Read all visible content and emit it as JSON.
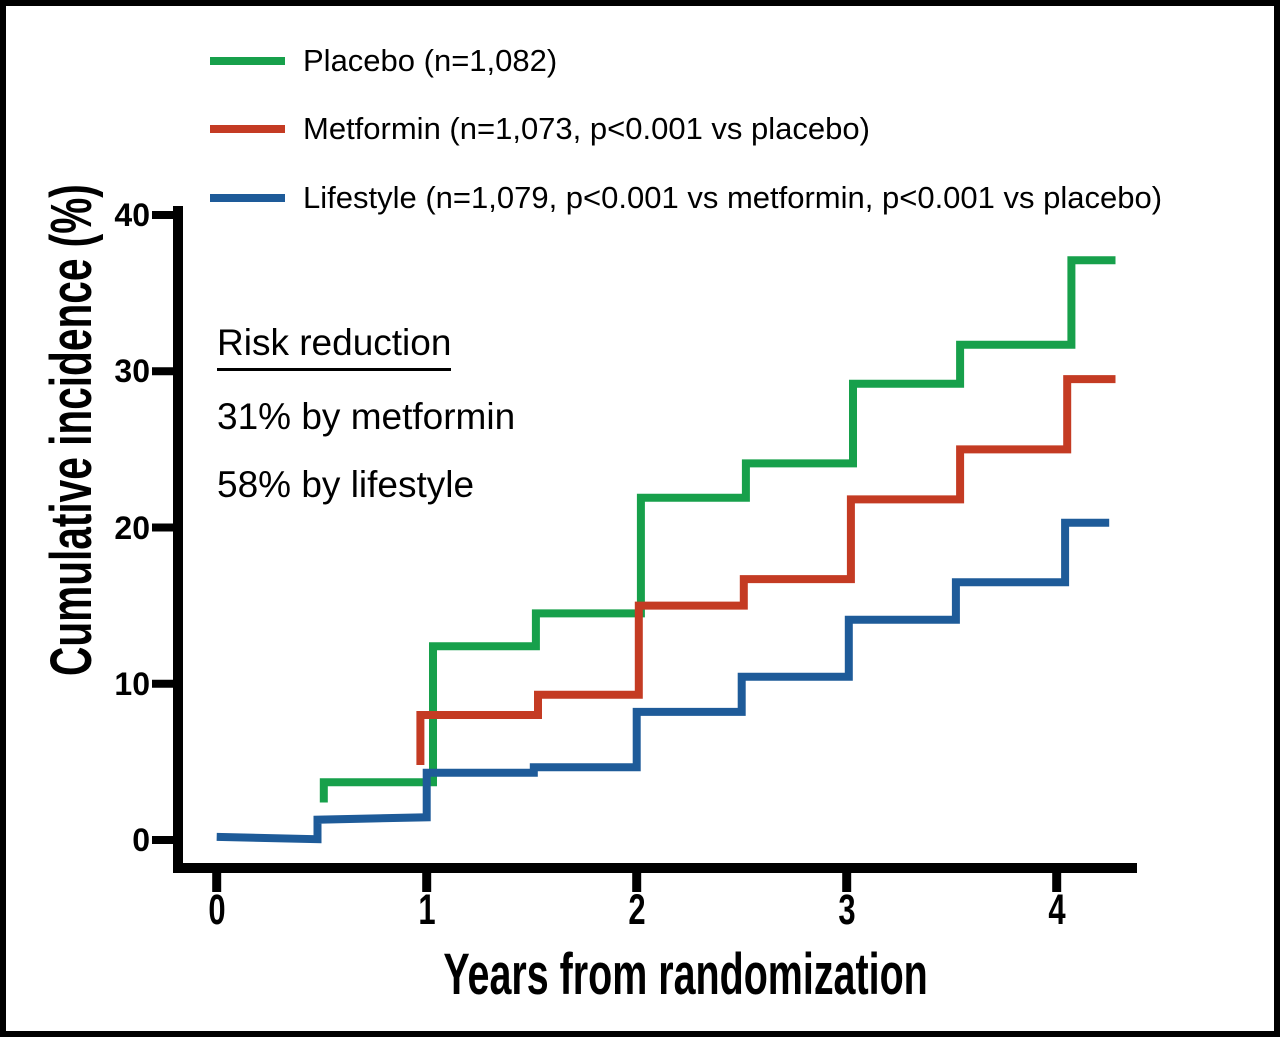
{
  "legend": {
    "items": [
      {
        "label": "Placebo (n=1,082)",
        "series": "Placebo"
      },
      {
        "label": "Metformin (n=1,073, p<0.001 vs placebo)",
        "series": "Metformin"
      },
      {
        "label": "Lifestyle (n=1,079, p<0.001 vs metformin, p<0.001 vs placebo)",
        "series": "Lifestyle"
      }
    ]
  },
  "annotations": {
    "heading": "Risk reduction",
    "line1": "31% by metformin",
    "line2": "58% by lifestyle"
  },
  "chart_data": {
    "type": "line",
    "subtype": "step-cumulative-incidence",
    "title": "",
    "xlabel": "Years from randomization",
    "ylabel": "Cumulative incidence (%)",
    "xlim": [
      0,
      4.4
    ],
    "ylim": [
      0,
      40
    ],
    "x_ticks": [
      0,
      1,
      2,
      3,
      4
    ],
    "y_ticks": [
      0,
      10,
      20,
      30,
      40
    ],
    "grid": false,
    "legend_position": "top-left",
    "axis_color": "#000000",
    "series": [
      {
        "name": "Placebo",
        "n": "1,082",
        "color": "#17a04b",
        "points": [
          [
            0.51,
            2.4
          ],
          [
            0.51,
            3.7
          ],
          [
            1.03,
            3.7
          ],
          [
            1.03,
            12.4
          ],
          [
            1.52,
            12.4
          ],
          [
            1.52,
            14.5
          ],
          [
            2.02,
            14.5
          ],
          [
            2.02,
            21.9
          ],
          [
            2.52,
            21.9
          ],
          [
            2.52,
            24.1
          ],
          [
            3.03,
            24.1
          ],
          [
            3.03,
            29.2
          ],
          [
            3.54,
            29.2
          ],
          [
            3.54,
            31.7
          ],
          [
            4.07,
            31.7
          ],
          [
            4.07,
            37.1
          ],
          [
            4.28,
            37.1
          ]
        ]
      },
      {
        "name": "Metformin",
        "n": "1,073",
        "p_vs_placebo": "p<0.001",
        "color": "#c43b23",
        "points": [
          [
            0.97,
            4.8
          ],
          [
            0.97,
            8.0
          ],
          [
            1.53,
            8.0
          ],
          [
            1.53,
            9.3
          ],
          [
            2.01,
            9.3
          ],
          [
            2.01,
            15.0
          ],
          [
            2.51,
            15.0
          ],
          [
            2.51,
            16.7
          ],
          [
            3.02,
            16.7
          ],
          [
            3.02,
            21.8
          ],
          [
            3.54,
            21.8
          ],
          [
            3.54,
            25.0
          ],
          [
            4.05,
            25.0
          ],
          [
            4.05,
            29.5
          ],
          [
            4.28,
            29.5
          ]
        ]
      },
      {
        "name": "Lifestyle",
        "n": "1,079",
        "p_vs_metformin": "p<0.001",
        "p_vs_placebo": "p<0.001",
        "color": "#1e5b99",
        "points": [
          [
            0.0,
            0.2
          ],
          [
            0.48,
            0.05
          ],
          [
            0.48,
            1.3
          ],
          [
            1.0,
            1.45
          ],
          [
            1.0,
            4.3
          ],
          [
            1.51,
            4.3
          ],
          [
            1.51,
            4.65
          ],
          [
            2.0,
            4.65
          ],
          [
            2.0,
            8.2
          ],
          [
            2.5,
            8.2
          ],
          [
            2.5,
            10.45
          ],
          [
            3.01,
            10.45
          ],
          [
            3.01,
            14.1
          ],
          [
            3.52,
            14.1
          ],
          [
            3.52,
            16.5
          ],
          [
            4.04,
            16.5
          ],
          [
            4.04,
            20.3
          ],
          [
            4.25,
            20.3
          ]
        ]
      }
    ],
    "risk_reduction": {
      "metformin": "31%",
      "lifestyle": "58%"
    }
  }
}
